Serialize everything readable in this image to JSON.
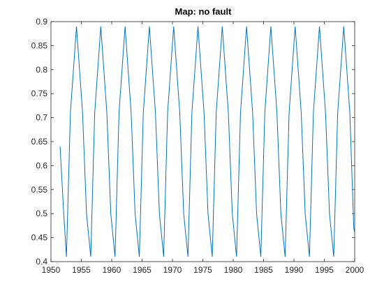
{
  "chart_data": {
    "type": "line",
    "title": "Map: no fault",
    "xlabel": "",
    "ylabel": "",
    "xlim": [
      1950,
      2000
    ],
    "ylim": [
      0.4,
      0.9
    ],
    "xticks": [
      1950,
      1955,
      1960,
      1965,
      1970,
      1975,
      1980,
      1985,
      1990,
      1995,
      2000
    ],
    "yticks": [
      0.4,
      0.45,
      0.5,
      0.55,
      0.6,
      0.65,
      0.7,
      0.75,
      0.8,
      0.85,
      0.9
    ],
    "xtick_labels": [
      "1950",
      "1955",
      "1960",
      "1965",
      "1970",
      "1975",
      "1980",
      "1985",
      "1990",
      "1995",
      "2000"
    ],
    "ytick_labels": [
      "0.4",
      "0.45",
      "0.5",
      "0.55",
      "0.6",
      "0.65",
      "0.7",
      "0.75",
      "0.8",
      "0.85",
      "0.9"
    ],
    "grid": false,
    "line_color": "#0072BD",
    "series": [
      {
        "x": [
          1951.5,
          1952.1,
          1952.55,
          1953.2,
          1954.2,
          1955.2,
          1955.85,
          1956.55,
          1957.2,
          1958.2,
          1959.2,
          1959.85,
          1960.55,
          1961.2,
          1962.2,
          1963.2,
          1963.85,
          1964.55,
          1965.2,
          1966.2,
          1967.2,
          1967.85,
          1968.55,
          1969.2,
          1970.2,
          1971.2,
          1971.85,
          1972.55,
          1973.2,
          1974.2,
          1975.2,
          1975.85,
          1976.55,
          1977.2,
          1978.2,
          1979.2,
          1979.85,
          1980.55,
          1981.2,
          1982.2,
          1983.2,
          1983.85,
          1984.55,
          1985.2,
          1986.2,
          1987.2,
          1987.85,
          1988.55,
          1989.2,
          1990.2,
          1991.2,
          1991.85,
          1992.55,
          1993.2,
          1994.2,
          1995.2,
          1995.85,
          1996.55,
          1997.2,
          1998.2,
          1999.2,
          1999.85,
          2000
        ],
        "y": [
          0.64,
          0.5,
          0.41,
          0.71,
          0.89,
          0.71,
          0.5,
          0.41,
          0.71,
          0.89,
          0.71,
          0.5,
          0.41,
          0.71,
          0.89,
          0.71,
          0.5,
          0.41,
          0.71,
          0.89,
          0.71,
          0.5,
          0.41,
          0.71,
          0.89,
          0.71,
          0.5,
          0.41,
          0.71,
          0.89,
          0.71,
          0.5,
          0.41,
          0.71,
          0.89,
          0.71,
          0.5,
          0.41,
          0.71,
          0.89,
          0.71,
          0.5,
          0.41,
          0.71,
          0.89,
          0.71,
          0.5,
          0.41,
          0.71,
          0.89,
          0.71,
          0.5,
          0.41,
          0.71,
          0.89,
          0.71,
          0.5,
          0.41,
          0.71,
          0.89,
          0.71,
          0.47,
          0.46
        ]
      }
    ]
  }
}
